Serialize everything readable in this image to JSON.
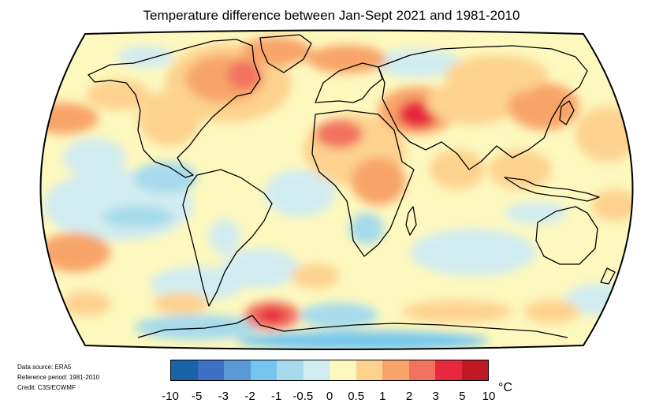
{
  "title": "Temperature difference between Jan-Sept 2021 and 1981-2010",
  "credits": {
    "source": "Data source: ERA5",
    "reference": "Reference period: 1981-2010",
    "credit": "Credit: C3S/ECWMF"
  },
  "legend": {
    "colors": [
      "#1a63a8",
      "#3d6fc2",
      "#5b98d6",
      "#74c6f0",
      "#a6daec",
      "#d1ecf1",
      "#fdf8be",
      "#fdd28f",
      "#f8a469",
      "#f27260",
      "#e8283e",
      "#bf1a24"
    ],
    "ticks": [
      "-10",
      "-5",
      "-3",
      "-2",
      "-1",
      "-0.5",
      "0",
      "0.5",
      "1",
      "2",
      "3",
      "5",
      "10"
    ],
    "unit": "°C"
  },
  "map": {
    "projection": "Robinson",
    "base_color": "#fdf8be",
    "coastline_color": "#000000"
  }
}
